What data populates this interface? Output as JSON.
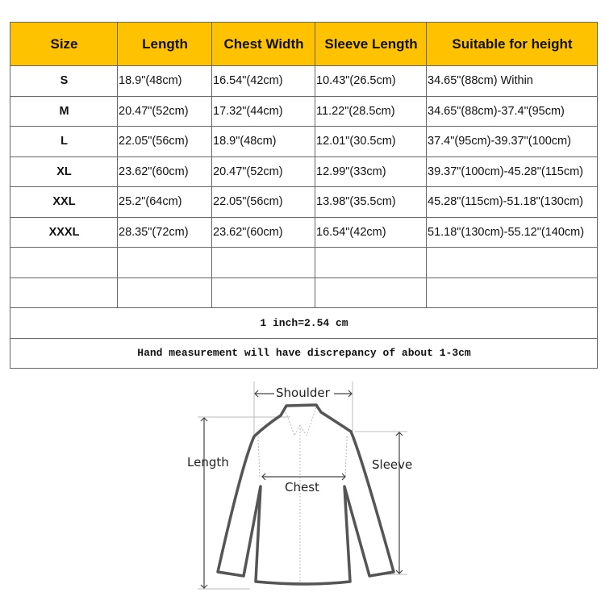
{
  "table": {
    "headers": [
      "Size",
      "Length",
      "Chest Width",
      "Sleeve Length",
      "Suitable for height"
    ],
    "rows": [
      [
        "S",
        "18.9\"(48cm)",
        "16.54\"(42cm)",
        "10.43\"(26.5cm)",
        "34.65\"(88cm) Within"
      ],
      [
        "M",
        "20.47\"(52cm)",
        "17.32\"(44cm)",
        "11.22\"(28.5cm)",
        "34.65\"(88cm)-37.4\"(95cm)"
      ],
      [
        "L",
        "22.05\"(56cm)",
        "18.9\"(48cm)",
        "12.01\"(30.5cm)",
        "37.4\"(95cm)-39.37\"(100cm)"
      ],
      [
        "XL",
        "23.62\"(60cm)",
        "20.47\"(52cm)",
        "12.99\"(33cm)",
        "39.37\"(100cm)-45.28\"(115cm)"
      ],
      [
        "XXL",
        "25.2\"(64cm)",
        "22.05\"(56cm)",
        "13.98\"(35.5cm)",
        "45.28\"(115cm)-51.18\"(130cm)"
      ],
      [
        "XXXL",
        "28.35\"(72cm)",
        "23.62\"(60cm)",
        "16.54\"(42cm)",
        "51.18\"(130cm)-55.12\"(140cm)"
      ]
    ],
    "notes": [
      "1 inch=2.54 cm",
      "Hand measurement will have discrepancy of about 1-3cm"
    ],
    "header_color": "#fec200"
  },
  "diagram": {
    "shoulder": "Shoulder",
    "length": "Length",
    "chest": "Chest",
    "sleeve": "Sleeve"
  }
}
